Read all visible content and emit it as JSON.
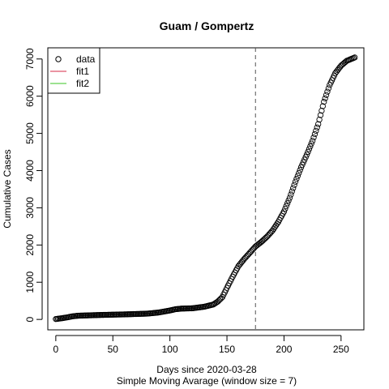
{
  "chart_data": {
    "type": "scatter",
    "title": "Guam / Gompertz",
    "xlabel": "Days since 2020-03-28",
    "xlabel2": "Simple Moving Avarage (window size = 7)",
    "ylabel": "Cumulative Cases",
    "xlim": [
      -7,
      270
    ],
    "ylim": [
      -280,
      7300
    ],
    "x_ticks": [
      0,
      50,
      100,
      150,
      200,
      250
    ],
    "y_ticks": [
      0,
      1000,
      2000,
      3000,
      4000,
      5000,
      6000,
      7000
    ],
    "vline": {
      "x": 175,
      "style": "dashed"
    },
    "legend": {
      "position": "top-left",
      "items": [
        {
          "label": "data",
          "type": "circle",
          "color": "#000000"
        },
        {
          "label": "fit1",
          "type": "line",
          "color": "#DF536B"
        },
        {
          "label": "fit2",
          "type": "line",
          "color": "#61D04F"
        }
      ]
    },
    "series": [
      {
        "name": "data",
        "anchors": [
          [
            0,
            10
          ],
          [
            5,
            30
          ],
          [
            10,
            55
          ],
          [
            15,
            85
          ],
          [
            20,
            100
          ],
          [
            30,
            110
          ],
          [
            40,
            120
          ],
          [
            60,
            135
          ],
          [
            80,
            155
          ],
          [
            90,
            185
          ],
          [
            100,
            240
          ],
          [
            105,
            275
          ],
          [
            110,
            290
          ],
          [
            120,
            300
          ],
          [
            130,
            340
          ],
          [
            138,
            400
          ],
          [
            142,
            480
          ],
          [
            146,
            600
          ],
          [
            150,
            850
          ],
          [
            155,
            1150
          ],
          [
            160,
            1430
          ],
          [
            165,
            1620
          ],
          [
            170,
            1790
          ],
          [
            175,
            1960
          ],
          [
            180,
            2080
          ],
          [
            185,
            2220
          ],
          [
            190,
            2390
          ],
          [
            195,
            2620
          ],
          [
            200,
            2900
          ],
          [
            205,
            3270
          ],
          [
            210,
            3700
          ],
          [
            215,
            4090
          ],
          [
            220,
            4430
          ],
          [
            225,
            4800
          ],
          [
            230,
            5250
          ],
          [
            235,
            5850
          ],
          [
            240,
            6300
          ],
          [
            245,
            6620
          ],
          [
            250,
            6820
          ],
          [
            255,
            6950
          ],
          [
            262,
            7040
          ]
        ]
      }
    ]
  }
}
